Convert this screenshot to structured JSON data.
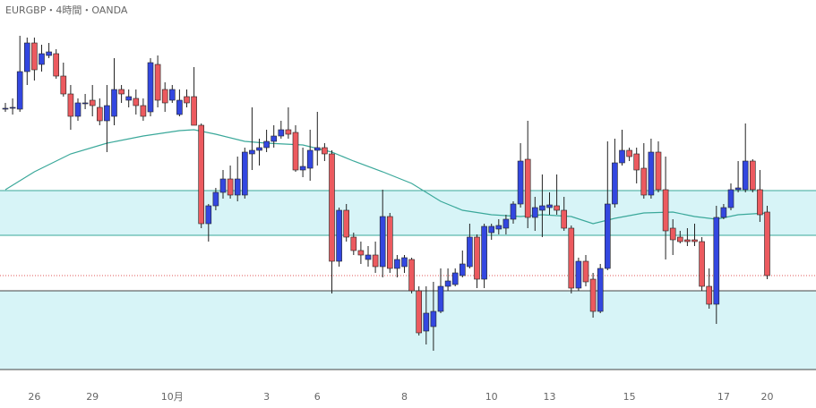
{
  "chart_data": {
    "type": "candlestick",
    "title": "EURGBP・4時間・OANDA",
    "categories": [
      null,
      null,
      null,
      null,
      "26",
      null,
      null,
      null,
      null,
      null,
      null,
      null,
      "29",
      null,
      null,
      null,
      null,
      null,
      null,
      null,
      null,
      null,
      null,
      "10月",
      null,
      null,
      null,
      null,
      null,
      null,
      null,
      null,
      null,
      null,
      null,
      null,
      "3",
      null,
      null,
      null,
      null,
      null,
      null,
      "6",
      null,
      null,
      null,
      null,
      null,
      null,
      null,
      null,
      null,
      null,
      null,
      "8",
      null,
      null,
      null,
      null,
      null,
      null,
      null,
      null,
      null,
      null,
      null,
      "10",
      null,
      null,
      null,
      null,
      null,
      null,
      null,
      "13",
      null,
      null,
      null,
      null,
      null,
      null,
      null,
      null,
      null,
      null,
      "15",
      null,
      null,
      null,
      null,
      null,
      null,
      null,
      null,
      null,
      null,
      null,
      null,
      "17",
      null,
      null,
      null,
      null,
      null,
      "20"
    ],
    "open": [
      309,
      310,
      308,
      350,
      382,
      358,
      368,
      370,
      345,
      325,
      300,
      315,
      318,
      310,
      295,
      300,
      330,
      318,
      320,
      312,
      305,
      358,
      330,
      318,
      302,
      322,
      322,
      290,
      180,
      200,
      215,
      230,
      212,
      212,
      258,
      262,
      265,
      272,
      278,
      285,
      282,
      240,
      242,
      262,
      265,
      258,
      138,
      195,
      165,
      150,
      140,
      145,
      132,
      188,
      130,
      132,
      140,
      105,
      60,
      65,
      82,
      110,
      112,
      122,
      132,
      165,
      118,
      170,
      174,
      175,
      185,
      202,
      252,
      187,
      195,
      198,
      200,
      195,
      175,
      108,
      138,
      118,
      82,
      130,
      202,
      248,
      262,
      258,
      242,
      212,
      260,
      218,
      175,
      165,
      162,
      162,
      160,
      110,
      90,
      187,
      198,
      218,
      218,
      250,
      218,
      193
    ],
    "high": [
      315,
      320,
      390,
      388,
      388,
      380,
      382,
      375,
      360,
      335,
      320,
      325,
      335,
      320,
      335,
      365,
      335,
      330,
      330,
      320,
      365,
      368,
      338,
      335,
      330,
      330,
      355,
      292,
      202,
      220,
      240,
      245,
      255,
      265,
      310,
      275,
      285,
      290,
      295,
      310,
      290,
      265,
      285,
      305,
      270,
      262,
      198,
      202,
      170,
      160,
      155,
      160,
      218,
      192,
      145,
      145,
      142,
      110,
      110,
      115,
      130,
      130,
      130,
      150,
      180,
      168,
      180,
      180,
      185,
      190,
      205,
      270,
      295,
      210,
      235,
      215,
      235,
      210,
      178,
      142,
      145,
      125,
      135,
      272,
      275,
      285,
      265,
      265,
      270,
      275,
      272,
      255,
      185,
      172,
      175,
      180,
      165,
      130,
      200,
      202,
      225,
      250,
      292,
      252,
      240,
      200
    ],
    "low": [
      305,
      302,
      305,
      335,
      340,
      350,
      365,
      342,
      322,
      285,
      295,
      308,
      300,
      290,
      260,
      290,
      315,
      310,
      302,
      295,
      300,
      310,
      305,
      315,
      300,
      310,
      290,
      175,
      160,
      195,
      208,
      208,
      205,
      208,
      240,
      245,
      260,
      265,
      275,
      275,
      238,
      232,
      228,
      245,
      250,
      102,
      132,
      160,
      145,
      135,
      132,
      125,
      120,
      125,
      120,
      125,
      102,
      55,
      45,
      38,
      80,
      105,
      110,
      120,
      130,
      108,
      108,
      162,
      168,
      168,
      180,
      198,
      175,
      172,
      165,
      190,
      190,
      172,
      102,
      105,
      110,
      75,
      80,
      128,
      198,
      245,
      250,
      225,
      208,
      208,
      215,
      140,
      145,
      158,
      155,
      155,
      105,
      85,
      68,
      185,
      195,
      215,
      215,
      215,
      182,
      118
    ],
    "close": [
      309,
      310,
      350,
      382,
      352,
      370,
      372,
      345,
      325,
      300,
      315,
      315,
      312,
      295,
      312,
      330,
      325,
      322,
      312,
      300,
      360,
      318,
      315,
      330,
      318,
      315,
      290,
      180,
      200,
      215,
      230,
      212,
      230,
      260,
      262,
      265,
      272,
      278,
      285,
      280,
      240,
      244,
      262,
      265,
      258,
      138,
      195,
      165,
      150,
      145,
      145,
      132,
      188,
      130,
      140,
      142,
      105,
      58,
      80,
      82,
      110,
      116,
      125,
      135,
      165,
      118,
      177,
      177,
      178,
      185,
      202,
      250,
      187,
      198,
      200,
      201,
      195,
      175,
      108,
      138,
      115,
      82,
      130,
      202,
      248,
      262,
      255,
      240,
      212,
      260,
      218,
      172,
      162,
      160,
      160,
      160,
      110,
      90,
      187,
      198,
      218,
      220,
      250,
      218,
      190,
      122
    ],
    "up_color": "#3347e0",
    "down_color": "#ec5a5f",
    "ma": {
      "color": "#3aa89a",
      "x": [
        0,
        4,
        9,
        14,
        19,
        24,
        26,
        29,
        33,
        36,
        41,
        45,
        48,
        52,
        56,
        60,
        63,
        67,
        71,
        74,
        78,
        81,
        84,
        88,
        92,
        95,
        98,
        101,
        105
      ],
      "values": [
        218,
        238,
        258,
        270,
        278,
        284,
        285,
        280,
        272,
        270,
        268,
        260,
        250,
        238,
        225,
        205,
        195,
        190,
        188,
        190,
        188,
        180,
        186,
        192,
        193,
        188,
        185,
        190,
        192
      ]
    },
    "zones": [
      {
        "range": [
          167,
          217
        ],
        "color": "#d7f4f7",
        "edge": "#3aa89a"
      },
      {
        "range": [
          17,
          105
        ],
        "color": "#d7f4f7",
        "edge": "#444444"
      }
    ],
    "price_line": {
      "value": 122,
      "color": "#e05a5a"
    },
    "ylim": [
      0,
      430
    ]
  }
}
